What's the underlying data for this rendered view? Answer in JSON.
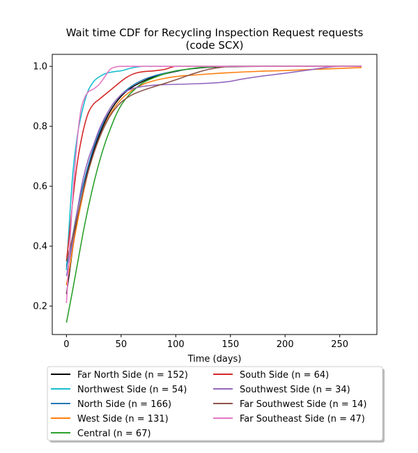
{
  "chart_data": {
    "type": "line",
    "title_line1": "Wait time CDF for Recycling Inspection Request  requests",
    "title_line2": "(code SCX)",
    "xlabel": "Time (days)",
    "ylabel": "",
    "xlim": [
      -13,
      284
    ],
    "ylim": [
      0.105,
      1.04
    ],
    "xticks": [
      0,
      50,
      100,
      150,
      200,
      250
    ],
    "yticks": [
      0.2,
      0.4,
      0.6,
      0.8,
      1.0
    ],
    "ytick_labels": [
      "0.2",
      "0.4",
      "0.6",
      "0.8",
      "1.0"
    ],
    "grid": false,
    "legend_placement": "below-center",
    "series": [
      {
        "name": "Far North Side (n = 152)",
        "color": "#000000",
        "x": [
          0,
          3,
          6,
          10,
          15,
          20,
          25,
          30,
          40,
          50,
          60,
          70,
          80,
          90,
          100,
          110,
          120,
          130,
          150,
          200,
          250,
          270
        ],
        "y": [
          0.24,
          0.32,
          0.4,
          0.49,
          0.58,
          0.66,
          0.72,
          0.77,
          0.85,
          0.9,
          0.93,
          0.95,
          0.965,
          0.975,
          0.983,
          0.99,
          0.994,
          0.997,
          0.999,
          1.0,
          1.0,
          1.0
        ]
      },
      {
        "name": "Northwest Side (n = 54)",
        "color": "#17becf",
        "x": [
          0,
          3,
          6,
          10,
          15,
          20,
          25,
          30,
          35,
          40,
          45,
          50,
          55,
          60,
          65,
          70,
          80,
          100,
          150,
          200,
          270
        ],
        "y": [
          0.32,
          0.5,
          0.65,
          0.77,
          0.86,
          0.92,
          0.95,
          0.965,
          0.975,
          0.98,
          0.983,
          0.985,
          0.99,
          0.995,
          0.998,
          1.0,
          1.0,
          1.0,
          1.0,
          1.0,
          1.0
        ]
      },
      {
        "name": "North Side (n = 166)",
        "color": "#1f77b4",
        "x": [
          0,
          3,
          6,
          10,
          15,
          20,
          25,
          30,
          40,
          50,
          60,
          70,
          80,
          90,
          100,
          110,
          120,
          130,
          150,
          200,
          250,
          270
        ],
        "y": [
          0.33,
          0.38,
          0.44,
          0.52,
          0.6,
          0.67,
          0.73,
          0.78,
          0.86,
          0.905,
          0.935,
          0.955,
          0.968,
          0.977,
          0.984,
          0.99,
          0.995,
          0.998,
          1.0,
          1.0,
          1.0,
          1.0
        ]
      },
      {
        "name": "West Side (n = 131)",
        "color": "#ff7f0e",
        "x": [
          0,
          3,
          6,
          10,
          15,
          20,
          25,
          30,
          40,
          50,
          60,
          70,
          80,
          90,
          100,
          120,
          140,
          160,
          180,
          200,
          220,
          250,
          270
        ],
        "y": [
          0.27,
          0.33,
          0.4,
          0.48,
          0.57,
          0.65,
          0.71,
          0.76,
          0.84,
          0.89,
          0.92,
          0.94,
          0.952,
          0.96,
          0.966,
          0.972,
          0.977,
          0.981,
          0.984,
          0.986,
          0.989,
          0.993,
          0.996
        ]
      },
      {
        "name": "Central (n = 67)",
        "color": "#2ca02c",
        "x": [
          0,
          5,
          10,
          15,
          20,
          25,
          30,
          35,
          40,
          45,
          50,
          55,
          60,
          70,
          80,
          90,
          100,
          110,
          120,
          130,
          150,
          200,
          270
        ],
        "y": [
          0.145,
          0.24,
          0.34,
          0.44,
          0.53,
          0.61,
          0.68,
          0.74,
          0.79,
          0.835,
          0.87,
          0.895,
          0.915,
          0.945,
          0.962,
          0.975,
          0.985,
          0.99,
          0.995,
          0.998,
          1.0,
          1.0,
          1.0
        ]
      },
      {
        "name": "South Side (n = 64)",
        "color": "#d62728",
        "x": [
          0,
          3,
          6,
          10,
          15,
          20,
          25,
          30,
          35,
          40,
          45,
          50,
          55,
          60,
          65,
          70,
          80,
          90,
          100,
          150,
          200,
          270
        ],
        "y": [
          0.35,
          0.45,
          0.56,
          0.68,
          0.78,
          0.845,
          0.875,
          0.89,
          0.905,
          0.92,
          0.935,
          0.95,
          0.963,
          0.973,
          0.979,
          0.982,
          0.985,
          0.99,
          1.0,
          1.0,
          1.0,
          1.0
        ]
      },
      {
        "name": "Southwest Side (n = 34)",
        "color": "#9467bd",
        "x": [
          0,
          5,
          10,
          15,
          20,
          25,
          30,
          40,
          50,
          60,
          70,
          80,
          90,
          100,
          120,
          140,
          150,
          160,
          180,
          200,
          220,
          250,
          270
        ],
        "y": [
          0.3,
          0.4,
          0.52,
          0.62,
          0.69,
          0.74,
          0.79,
          0.86,
          0.905,
          0.925,
          0.933,
          0.937,
          0.939,
          0.94,
          0.942,
          0.946,
          0.95,
          0.957,
          0.968,
          0.977,
          0.987,
          1.0,
          1.0
        ]
      },
      {
        "name": "Far Southwest Side (n = 14)",
        "color": "#8c564b",
        "x": [
          0,
          5,
          10,
          15,
          20,
          25,
          30,
          40,
          50,
          60,
          70,
          80,
          90,
          100,
          110,
          120,
          130,
          140,
          150,
          200,
          270
        ],
        "y": [
          0.35,
          0.42,
          0.5,
          0.58,
          0.65,
          0.71,
          0.76,
          0.835,
          0.88,
          0.905,
          0.92,
          0.932,
          0.943,
          0.955,
          0.968,
          0.98,
          0.99,
          0.996,
          1.0,
          1.0,
          1.0
        ]
      },
      {
        "name": "Far Southeast Side (n = 47)",
        "color": "#e377c2",
        "x": [
          0,
          3,
          6,
          10,
          13,
          15,
          18,
          20,
          25,
          30,
          35,
          40,
          45,
          50,
          55,
          60,
          70,
          100,
          150,
          200,
          270
        ],
        "y": [
          0.21,
          0.4,
          0.58,
          0.76,
          0.85,
          0.88,
          0.905,
          0.915,
          0.925,
          0.94,
          0.965,
          0.99,
          0.998,
          1.0,
          1.0,
          1.0,
          1.0,
          1.0,
          1.0,
          1.0,
          1.0
        ]
      }
    ]
  }
}
